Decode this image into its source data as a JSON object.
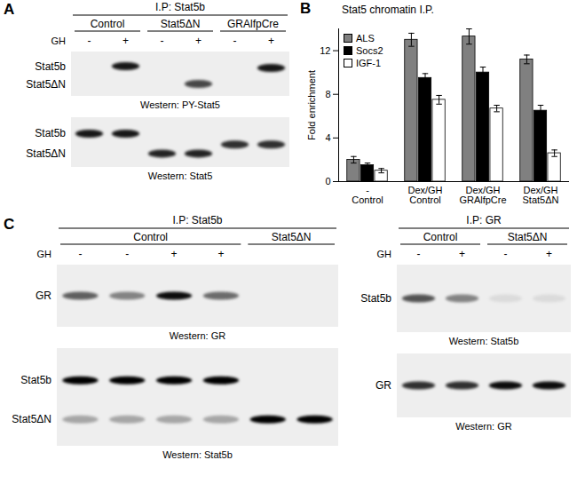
{
  "chart_data": {
    "type": "bar",
    "title": "Stat5 chromatin I.P.",
    "y_label": "Fold enrichment",
    "categories": [
      "Control",
      "Control",
      "GRAlfpCre",
      "Stat5ΔN"
    ],
    "treatments": [
      "-",
      "Dex/GH",
      "Dex/GH",
      "Dex/GH"
    ],
    "series": [
      {
        "name": "ALS",
        "color": "#808080",
        "values": [
          2.0,
          13.0,
          13.3,
          11.2
        ],
        "errors": [
          0.3,
          0.6,
          0.7,
          0.4
        ]
      },
      {
        "name": "Socs2",
        "color": "#000000",
        "values": [
          1.5,
          9.5,
          10.0,
          6.5
        ],
        "errors": [
          0.2,
          0.4,
          0.5,
          0.5
        ]
      },
      {
        "name": "IGF-1",
        "color": "#ffffff",
        "values": [
          1.0,
          7.5,
          6.7,
          2.6
        ],
        "errors": [
          0.2,
          0.4,
          0.3,
          0.3
        ]
      }
    ],
    "ylim": [
      0,
      14
    ],
    "yticks": [
      0,
      4,
      8,
      12
    ],
    "legend": "top-left",
    "grid": false
  },
  "figure": {
    "panels": [
      {
        "letter": "A",
        "blocks": [
          {
            "ip": "I.P: Stat5b",
            "gh_label": "GH",
            "groups": [
              {
                "name": "Control",
                "gh": [
                  "-",
                  "+"
                ]
              },
              {
                "name": "Stat5ΔN",
                "gh": [
                  "-",
                  "+"
                ]
              },
              {
                "name": "GRAlfpCre",
                "gh": [
                  "-",
                  "+"
                ]
              }
            ],
            "blots": [
              {
                "rows": [
                  "Stat5b",
                  "Stat5ΔN"
                ],
                "caption": "Western: PY-Stat5"
              },
              {
                "rows": [
                  "Stat5b",
                  "Stat5ΔN"
                ],
                "caption": "Western: Stat5"
              }
            ]
          }
        ]
      },
      {
        "letter": "B"
      },
      {
        "letter": "C",
        "blocks": [
          {
            "ip": "I.P: Stat5b",
            "gh_label": "GH",
            "groups": [
              {
                "name": "Control",
                "gh": [
                  "-",
                  "-",
                  "+",
                  "+"
                ]
              },
              {
                "name": "Stat5ΔN",
                "gh": [
                  null,
                  null
                ]
              }
            ],
            "blots": [
              {
                "rows": [
                  "GR"
                ],
                "caption": "Western: GR"
              },
              {
                "rows": [
                  "Stat5b",
                  "Stat5ΔN"
                ],
                "caption": "Western: Stat5b"
              }
            ]
          },
          {
            "ip": "I.P: GR",
            "gh_label": "GH",
            "groups": [
              {
                "name": "Control",
                "gh": [
                  "-",
                  "+"
                ]
              },
              {
                "name": "Stat5ΔN",
                "gh": [
                  "-",
                  "+"
                ]
              }
            ],
            "blots": [
              {
                "rows": [
                  "Stat5b"
                ],
                "caption": "Western: Stat5b"
              },
              {
                "rows": [
                  "GR"
                ],
                "caption": "Western: GR"
              }
            ]
          }
        ]
      }
    ]
  }
}
